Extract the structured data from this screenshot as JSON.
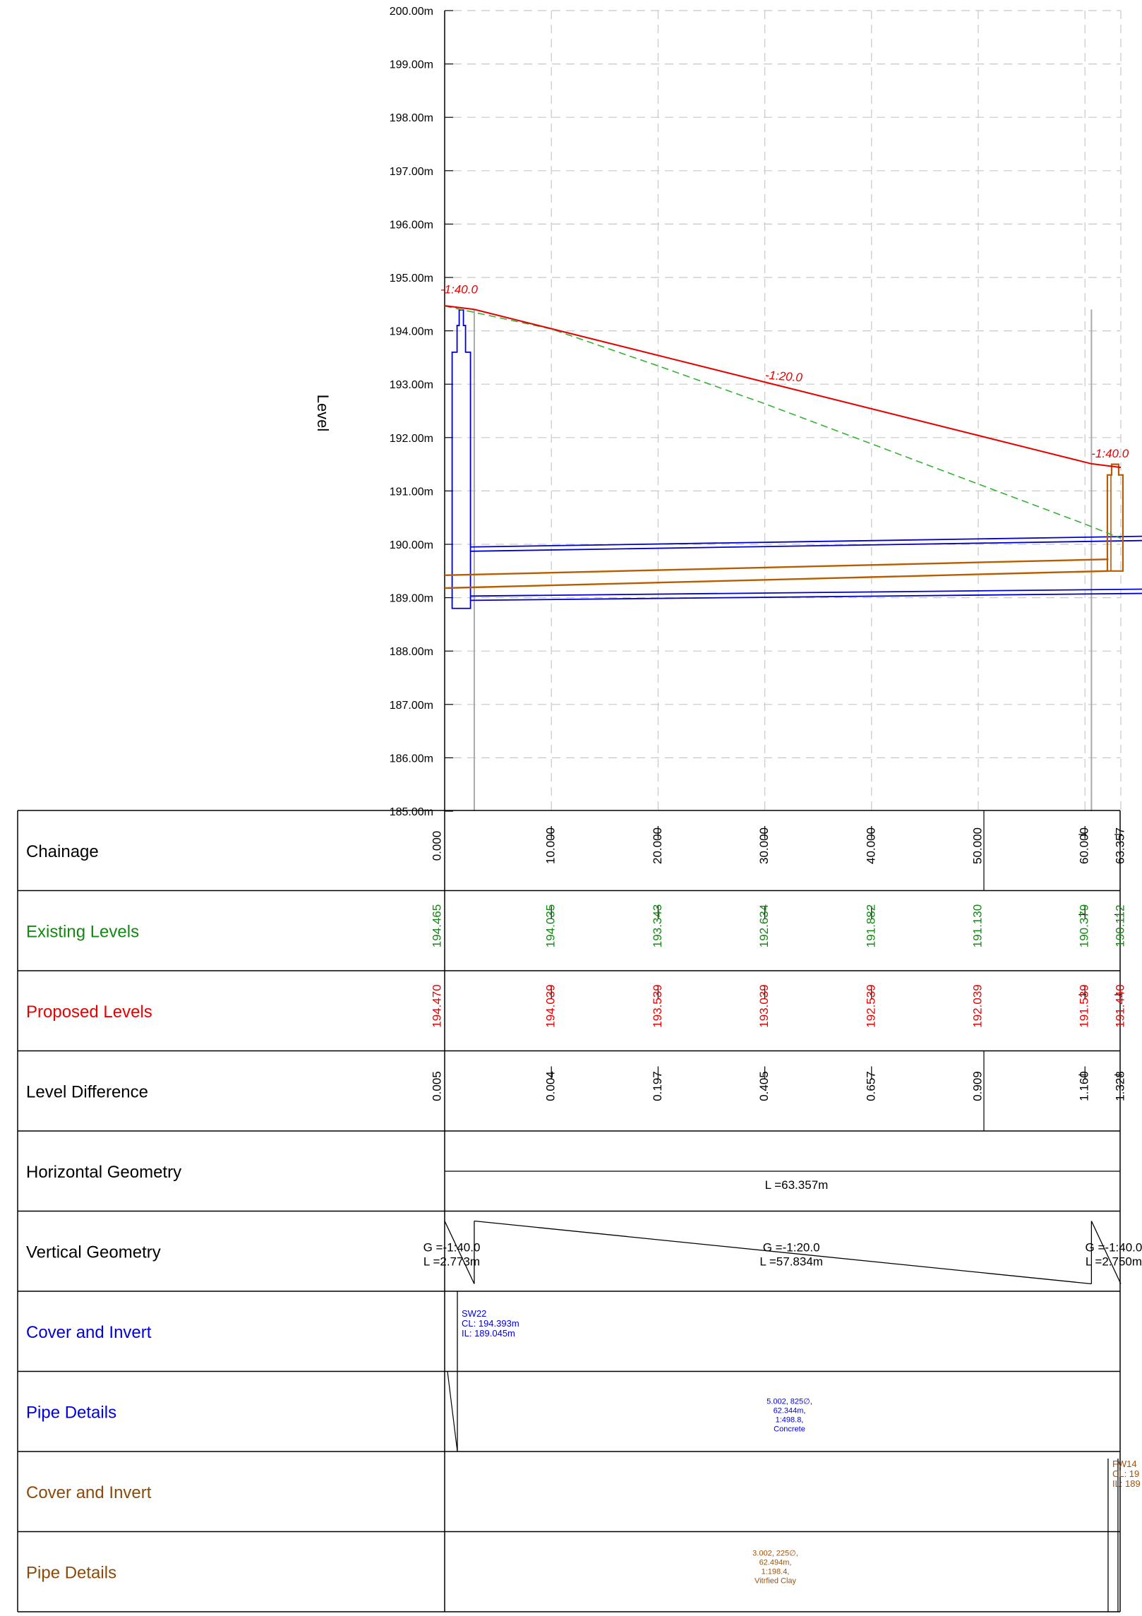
{
  "level_axis": {
    "label": "Level",
    "ticks": [
      {
        "value": 200,
        "label": "200.00m"
      },
      {
        "value": 199,
        "label": "199.00m"
      },
      {
        "value": 198,
        "label": "198.00m"
      },
      {
        "value": 197,
        "label": "197.00m"
      },
      {
        "value": 196,
        "label": "196.00m"
      },
      {
        "value": 195,
        "label": "195.00m"
      },
      {
        "value": 194,
        "label": "194.00m"
      },
      {
        "value": 193,
        "label": "193.00m"
      },
      {
        "value": 192,
        "label": "192.00m"
      },
      {
        "value": 191,
        "label": "191.00m"
      },
      {
        "value": 190,
        "label": "190.00m"
      },
      {
        "value": 189,
        "label": "189.00m"
      },
      {
        "value": 188,
        "label": "188.00m"
      },
      {
        "value": 187,
        "label": "187.00m"
      },
      {
        "value": 186,
        "label": "186.00m"
      },
      {
        "value": 185,
        "label": "185.00m"
      }
    ],
    "range": [
      185,
      200
    ]
  },
  "chainage_range": [
    0,
    63.357
  ],
  "profile": {
    "proposed_grades": [
      {
        "label": "-1:40.0",
        "at": "start"
      },
      {
        "label": "-1:20.0",
        "at": "middle"
      },
      {
        "label": "-1:40.0",
        "at": "end"
      }
    ],
    "proposed_line": [
      [
        0,
        194.47
      ],
      [
        2.773,
        194.401
      ],
      [
        60.607,
        191.509
      ],
      [
        63.357,
        191.44
      ]
    ],
    "existing_line": [
      [
        0,
        194.465
      ],
      [
        10,
        194.035
      ],
      [
        20,
        193.343
      ],
      [
        30,
        192.634
      ],
      [
        40,
        191.882
      ],
      [
        50,
        191.13
      ],
      [
        60,
        190.379
      ],
      [
        63.357,
        190.112
      ]
    ],
    "colors": {
      "proposed": "#e60000",
      "existing": "#33b233",
      "network_blue": "#0000cc",
      "network_brown": "#b85c00",
      "grid": "#c8c8c8"
    }
  },
  "bands": [
    {
      "label": "Chainage",
      "color": "#000000",
      "values": [
        {
          "x": 0,
          "text": "0.000"
        },
        {
          "x": 10,
          "text": "10.000"
        },
        {
          "x": 20,
          "text": "20.000"
        },
        {
          "x": 30,
          "text": "30.000"
        },
        {
          "x": 40,
          "text": "40.000"
        },
        {
          "x": 50,
          "text": "50.000"
        },
        {
          "x": 60,
          "text": "60.000"
        },
        {
          "x": 63.357,
          "text": "63.357"
        }
      ]
    },
    {
      "label": "Existing Levels",
      "color": "#118811",
      "values": [
        {
          "x": 0,
          "text": "194.465"
        },
        {
          "x": 10,
          "text": "194.035"
        },
        {
          "x": 20,
          "text": "193.343"
        },
        {
          "x": 30,
          "text": "192.634"
        },
        {
          "x": 40,
          "text": "191.882"
        },
        {
          "x": 50,
          "text": "191.130"
        },
        {
          "x": 60,
          "text": "190.379"
        },
        {
          "x": 63.357,
          "text": "190.112"
        }
      ]
    },
    {
      "label": "Proposed Levels",
      "color": "#e60000",
      "values": [
        {
          "x": 0,
          "text": "194.470"
        },
        {
          "x": 10,
          "text": "194.039"
        },
        {
          "x": 20,
          "text": "193.539"
        },
        {
          "x": 30,
          "text": "193.039"
        },
        {
          "x": 40,
          "text": "192.539"
        },
        {
          "x": 50,
          "text": "192.039"
        },
        {
          "x": 60,
          "text": "191.539"
        },
        {
          "x": 63.357,
          "text": "191.440"
        }
      ]
    },
    {
      "label": "Level Difference",
      "color": "#000000",
      "values": [
        {
          "x": 0,
          "text": "0.005"
        },
        {
          "x": 10,
          "text": "0.004"
        },
        {
          "x": 20,
          "text": "0.197"
        },
        {
          "x": 30,
          "text": "0.405"
        },
        {
          "x": 40,
          "text": "0.657"
        },
        {
          "x": 50,
          "text": "0.909"
        },
        {
          "x": 60,
          "text": "1.160"
        },
        {
          "x": 63.357,
          "text": "1.328"
        }
      ]
    },
    {
      "label": "Horizontal Geometry",
      "color": "#000000"
    },
    {
      "label": "Vertical Geometry",
      "color": "#000000"
    },
    {
      "label": "Cover and Invert",
      "color": "#0000dd"
    },
    {
      "label": "Pipe Details",
      "color": "#0000dd"
    },
    {
      "label": "Cover and Invert",
      "color": "#8b4a0a"
    },
    {
      "label": "Pipe Details",
      "color": "#8b4a0a"
    }
  ],
  "horizontal_geometry": {
    "length_label": "L =63.357m"
  },
  "vertical_geometry": [
    {
      "grade": "G =-1:40.0",
      "length": "L =2.773m"
    },
    {
      "grade": "G =-1:20.0",
      "length": "L =57.834m"
    },
    {
      "grade": "G =-1:40.0",
      "length": "L =2.750m"
    }
  ],
  "blue_network": {
    "manhole": {
      "name": "SW22",
      "cover": "CL: 194.393m",
      "invert": "IL: 189.045m"
    },
    "pipe": {
      "lines": [
        "5.002, 825∅,",
        "62.344m,",
        "1:498.8,",
        "Concrete"
      ]
    }
  },
  "brown_network": {
    "manhole": {
      "name": "FW14",
      "cover": "CL: 19",
      "invert": "IL: 189"
    },
    "pipe": {
      "lines": [
        "3.002, 225∅,",
        "62.494m,",
        "1:198.4,",
        "Vitrfied Clay"
      ]
    }
  }
}
